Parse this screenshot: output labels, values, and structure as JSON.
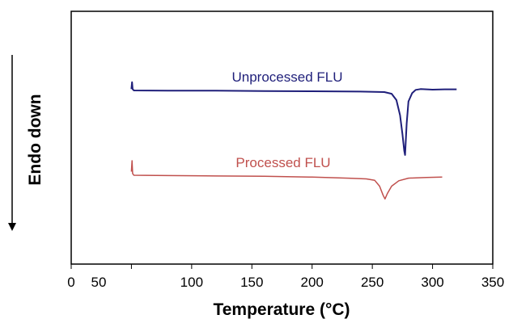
{
  "chart_data": {
    "type": "line",
    "xlabel": "Temperature (°C)",
    "ylabel": "Endo down",
    "xlim": [
      0,
      350
    ],
    "xticks": [
      0,
      50,
      100,
      150,
      200,
      250,
      300,
      350
    ],
    "yticks_shown": false,
    "grid": false,
    "legend": "none (series labelled directly above each curve)",
    "series": [
      {
        "name": "Unprocessed FLU",
        "color": "#1f1f7a",
        "baseline": 0.0,
        "points": [
          [
            50,
            0.05
          ],
          [
            50.5,
            0.3
          ],
          [
            51,
            0.05
          ],
          [
            52,
            0.0
          ],
          [
            80,
            -0.01
          ],
          [
            120,
            -0.01
          ],
          [
            160,
            -0.02
          ],
          [
            200,
            -0.03
          ],
          [
            240,
            -0.04
          ],
          [
            260,
            -0.06
          ],
          [
            266,
            -0.12
          ],
          [
            270,
            -0.35
          ],
          [
            273,
            -0.9
          ],
          [
            275,
            -1.6
          ],
          [
            276.5,
            -2.2
          ],
          [
            277.2,
            -2.35
          ],
          [
            278.5,
            -1.2
          ],
          [
            280,
            -0.4
          ],
          [
            283,
            -0.1
          ],
          [
            286,
            0.02
          ],
          [
            290,
            0.05
          ],
          [
            300,
            0.03
          ],
          [
            310,
            0.04
          ],
          [
            320,
            0.04
          ]
        ]
      },
      {
        "name": "Processed FLU",
        "color": "#c0504d",
        "baseline": 0.0,
        "points": [
          [
            50,
            0.1
          ],
          [
            50.5,
            0.4
          ],
          [
            51,
            0.05
          ],
          [
            52,
            0.0
          ],
          [
            80,
            -0.01
          ],
          [
            120,
            -0.02
          ],
          [
            160,
            -0.03
          ],
          [
            200,
            -0.05
          ],
          [
            230,
            -0.08
          ],
          [
            245,
            -0.1
          ],
          [
            252,
            -0.14
          ],
          [
            256,
            -0.3
          ],
          [
            259,
            -0.55
          ],
          [
            260.5,
            -0.65
          ],
          [
            262.5,
            -0.5
          ],
          [
            266,
            -0.3
          ],
          [
            272,
            -0.15
          ],
          [
            280,
            -0.08
          ],
          [
            295,
            -0.06
          ],
          [
            308,
            -0.05
          ]
        ]
      }
    ]
  }
}
